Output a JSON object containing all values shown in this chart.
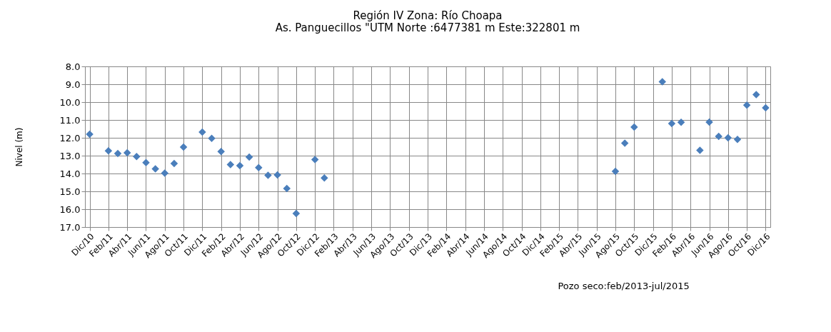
{
  "chart_data": {
    "type": "scatter",
    "title": [
      "Región IV  Zona: Río Choapa",
      "As. Panguecillos \"UTM Norte :6477381 m   Este:322801 m"
    ],
    "ylabel": "Nivel (m)",
    "categories": [
      "Dic/10",
      null,
      "Feb/11",
      null,
      "Abr/11",
      null,
      "Jun/11",
      null,
      "Ago/11",
      null,
      "Oct/11",
      null,
      "Dic/11",
      null,
      "Feb/12",
      null,
      "Abr/12",
      null,
      "Jun/12",
      null,
      "Ago/12",
      null,
      "Oct/12",
      null,
      "Dic/12",
      null,
      "Feb/13",
      null,
      "Abr/13",
      null,
      "Jun/13",
      null,
      "Ago/13",
      null,
      "Oct/13",
      null,
      "Dic/13",
      null,
      "Feb/14",
      null,
      "Abr/14",
      null,
      "Jun/14",
      null,
      "Ago/14",
      null,
      "Oct/14",
      null,
      "Dic/14",
      null,
      "Feb/15",
      null,
      "Abr/15",
      null,
      "Jun/15",
      null,
      "Ago/15",
      null,
      "Oct/15",
      null,
      "Dic/15",
      null,
      "Feb/16",
      null,
      "Abr/16",
      null,
      "Jun/16",
      null,
      "Ago/16",
      null,
      "Oct/16",
      null,
      "Dic/16"
    ],
    "series": [
      {
        "color": "#4a7ebb",
        "values": [
          11.8,
          null,
          12.73,
          12.88,
          12.84,
          13.05,
          13.39,
          13.74,
          13.98,
          13.44,
          12.52,
          null,
          11.68,
          12.03,
          12.77,
          13.5,
          13.56,
          13.08,
          13.67,
          14.1,
          14.08,
          14.84,
          16.24,
          null,
          13.22,
          14.25,
          null,
          null,
          null,
          null,
          null,
          null,
          null,
          null,
          null,
          null,
          null,
          null,
          null,
          null,
          null,
          null,
          null,
          null,
          null,
          null,
          null,
          null,
          null,
          null,
          null,
          null,
          null,
          null,
          null,
          null,
          13.88,
          12.3,
          11.4,
          null,
          null,
          8.86,
          11.2,
          11.13,
          null,
          12.7,
          11.12,
          11.92,
          12.0,
          12.09,
          10.17,
          9.58,
          10.32
        ]
      }
    ],
    "ylim": [
      17,
      8
    ],
    "yticks": [
      {
        "value": 8,
        "label": "8.0"
      },
      {
        "value": 9,
        "label": "9.0"
      },
      {
        "value": 10,
        "label": "10.0"
      },
      {
        "value": 11,
        "label": "11.0"
      },
      {
        "value": 12,
        "label": "12.0"
      },
      {
        "value": 13,
        "label": "13.0"
      },
      {
        "value": 14,
        "label": "14.0"
      },
      {
        "value": 15,
        "label": "15.0"
      },
      {
        "value": 16,
        "label": "16.0"
      },
      {
        "value": 17,
        "label": "17.0"
      }
    ],
    "grid": true,
    "marker": "diamond",
    "legend": false,
    "annotations": [
      "Pozo seco:feb/2013-jul/2015"
    ]
  }
}
